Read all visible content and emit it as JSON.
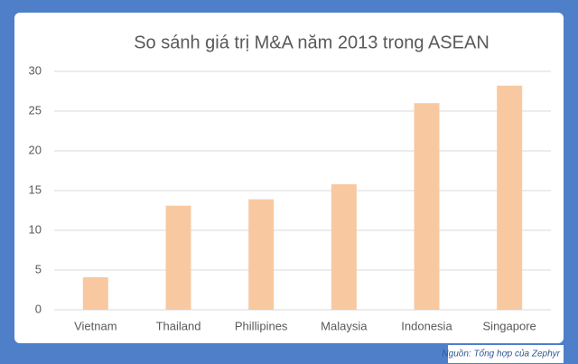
{
  "chart_data": {
    "type": "bar",
    "title": "So sánh giá trị M&A năm 2013 trong ASEAN",
    "categories": [
      "Vietnam",
      "Thailand",
      "Phillipines",
      "Malaysia",
      "Indonesia",
      "Singapore"
    ],
    "values": [
      4.1,
      13.1,
      13.9,
      15.8,
      26,
      28.2
    ],
    "color": "#f8c9a0",
    "ylim": [
      0,
      30
    ],
    "yticks": [
      0,
      5,
      10,
      15,
      20,
      25,
      30
    ],
    "grid": true,
    "source": "Nguồn: Tổng hợp của Zephyr"
  }
}
